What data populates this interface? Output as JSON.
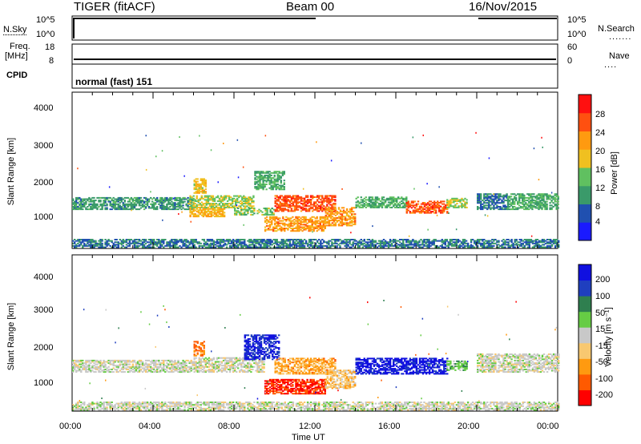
{
  "header": {
    "title": "TIGER (fitACF)",
    "beam": "Beam 00",
    "date": "16/Nov/2015"
  },
  "top_strip": {
    "left_label": "N.Sky",
    "right_label": "N.Search",
    "left_ticks": [
      "10^5",
      "10^0"
    ],
    "right_ticks": [
      "10^5",
      "10^0"
    ]
  },
  "freq_strip": {
    "left_label_1": "Freq.",
    "left_label_2": "[MHz]",
    "right_label": "Nave",
    "left_ticks": [
      "18",
      "8"
    ],
    "right_ticks": [
      "60",
      "0"
    ]
  },
  "cpid": {
    "label": "CPID",
    "value": "normal (fast) 151"
  },
  "xaxis": {
    "label": "Time UT",
    "ticks": [
      "00:00",
      "04:00",
      "08:00",
      "12:00",
      "16:00",
      "20:00",
      "00:00"
    ]
  },
  "yaxis": {
    "label": "Slant Range [km]",
    "ticks": [
      "1000",
      "2000",
      "3000",
      "4000"
    ]
  },
  "power_scale": {
    "label": "Power [dB]",
    "ticks": [
      "4",
      "8",
      "12",
      "16",
      "20",
      "24",
      "28"
    ]
  },
  "velocity_scale": {
    "label": "Velocity [m s⁻¹]",
    "ticks": [
      "-200",
      "-100",
      "-50",
      "-15",
      "15",
      "50",
      "100",
      "200"
    ]
  },
  "colors": {
    "power": [
      "#1a1aff",
      "#2050b0",
      "#3a9a6a",
      "#60c060",
      "#f0c020",
      "#ff9a10",
      "#ff5010",
      "#ff1010"
    ],
    "velocity": [
      "#ff0000",
      "#ff5a00",
      "#ff9a10",
      "#f8c870",
      "#c8c8c8",
      "#66cc44",
      "#2f7f4f",
      "#1f3fbf",
      "#1010e0"
    ]
  },
  "chart_data": [
    {
      "type": "heatmap",
      "ylabel": "Slant Range [km]",
      "xlabel": "",
      "xlim": [
        0,
        24
      ],
      "ylim": [
        180,
        4500
      ],
      "colorbar": "Power [dB]",
      "colorbar_range": [
        0,
        32
      ],
      "echo_regions": [
        {
          "t": [
            0,
            6
          ],
          "r": [
            1250,
            1600
          ],
          "v": 10
        },
        {
          "t": [
            0,
            24
          ],
          "r": [
            200,
            420
          ],
          "v": 8
        },
        {
          "t": [
            5.8,
            7.5
          ],
          "r": [
            1050,
            1300
          ],
          "v": 20
        },
        {
          "t": [
            5.8,
            9
          ],
          "r": [
            1300,
            1650
          ],
          "v": 16
        },
        {
          "t": [
            6,
            6.6
          ],
          "r": [
            1700,
            2100
          ],
          "v": 18
        },
        {
          "t": [
            8,
            10
          ],
          "r": [
            1100,
            1300
          ],
          "v": 14
        },
        {
          "t": [
            9,
            10.5
          ],
          "r": [
            1800,
            2300
          ],
          "v": 12
        },
        {
          "t": [
            9.5,
            12.5
          ],
          "r": [
            650,
            1050
          ],
          "v": 22
        },
        {
          "t": [
            10,
            13
          ],
          "r": [
            1200,
            1650
          ],
          "v": 26
        },
        {
          "t": [
            12.5,
            14
          ],
          "r": [
            800,
            1300
          ],
          "v": 22
        },
        {
          "t": [
            14,
            16.5
          ],
          "r": [
            1300,
            1600
          ],
          "v": 12
        },
        {
          "t": [
            16.5,
            18.5
          ],
          "r": [
            1150,
            1500
          ],
          "v": 26
        },
        {
          "t": [
            18.5,
            19.5
          ],
          "r": [
            1300,
            1550
          ],
          "v": 16
        },
        {
          "t": [
            20,
            21.5
          ],
          "r": [
            1250,
            1700
          ],
          "v": 8
        },
        {
          "t": [
            21.5,
            24
          ],
          "r": [
            1250,
            1700
          ],
          "v": 12
        }
      ]
    },
    {
      "type": "heatmap",
      "ylabel": "Slant Range [km]",
      "xlabel": "Time UT",
      "xlim": [
        0,
        24
      ],
      "ylim": [
        180,
        4500
      ],
      "colorbar": "Velocity [m s⁻¹]",
      "colorbar_range": [
        -250,
        250
      ],
      "echo_regions": [
        {
          "t": [
            0,
            6
          ],
          "r": [
            1250,
            1600
          ],
          "v": 0
        },
        {
          "t": [
            0,
            24
          ],
          "r": [
            200,
            420
          ],
          "v": 0
        },
        {
          "t": [
            6,
            6.5
          ],
          "r": [
            1700,
            2100
          ],
          "v": -150
        },
        {
          "t": [
            6,
            9.5
          ],
          "r": [
            1250,
            1650
          ],
          "v": 0
        },
        {
          "t": [
            8.5,
            10.2
          ],
          "r": [
            1600,
            2300
          ],
          "v": 200
        },
        {
          "t": [
            9.5,
            12.5
          ],
          "r": [
            650,
            1050
          ],
          "v": -200
        },
        {
          "t": [
            10,
            13
          ],
          "r": [
            1200,
            1650
          ],
          "v": -100
        },
        {
          "t": [
            12.5,
            14
          ],
          "r": [
            800,
            1300
          ],
          "v": -60
        },
        {
          "t": [
            14,
            16.5
          ],
          "r": [
            1200,
            1650
          ],
          "v": 220
        },
        {
          "t": [
            16.5,
            18.5
          ],
          "r": [
            1200,
            1650
          ],
          "v": 220
        },
        {
          "t": [
            18.5,
            19.5
          ],
          "r": [
            1300,
            1550
          ],
          "v": 60
        },
        {
          "t": [
            20,
            24
          ],
          "r": [
            1250,
            1750
          ],
          "v": 0
        }
      ]
    }
  ]
}
